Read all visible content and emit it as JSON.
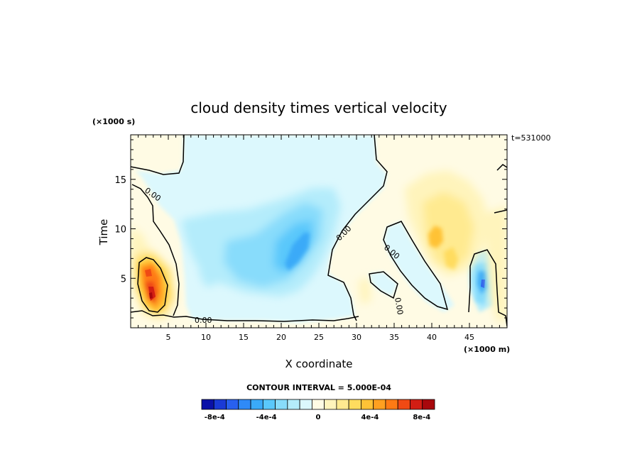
{
  "chart_data": {
    "type": "heatmap",
    "title": "cloud density times vertical velocity",
    "xlabel": "X coordinate",
    "ylabel": "Time",
    "x_units": "(×1000 m)",
    "y_units": "(×1000 s)",
    "time_stamp": "t=531000",
    "xlim": [
      0,
      50
    ],
    "ylim": [
      0,
      19.5
    ],
    "x_ticks": [
      5,
      10,
      15,
      20,
      25,
      30,
      35,
      40,
      45
    ],
    "y_ticks": [
      5,
      10,
      15
    ],
    "contour_interval_text": "CONTOUR INTERVAL = 5.000E-04",
    "contour_label": "0.00",
    "colorbar": {
      "min": -0.0009,
      "max": 0.0009,
      "step": 0.0001,
      "labels": [
        {
          "value": -0.0008,
          "text": "-8e-4"
        },
        {
          "value": -0.0004,
          "text": "-4e-4"
        },
        {
          "value": 0,
          "text": "0"
        },
        {
          "value": 0.0004,
          "text": "4e-4"
        },
        {
          "value": 0.0008,
          "text": "8e-4"
        }
      ],
      "colors": [
        "#0a10a8",
        "#1a3ad6",
        "#2860ef",
        "#2f8af7",
        "#3aaaf8",
        "#5ac8fb",
        "#88dcfb",
        "#b4ecfb",
        "#dcf8fd",
        "#fffbe4",
        "#fff4bc",
        "#ffea90",
        "#ffdc5e",
        "#ffc236",
        "#ffa020",
        "#ff7a14",
        "#f04a14",
        "#d21e14",
        "#a8080c"
      ]
    },
    "features": [
      {
        "x": 2.8,
        "y": 4.5,
        "value": 0.0008,
        "note": "positive maximum"
      },
      {
        "x": 22.5,
        "y": 8.0,
        "value": -0.0005,
        "note": "negative minimum"
      },
      {
        "x": 40.5,
        "y": 10.0,
        "value": 0.0004,
        "note": "positive core"
      },
      {
        "x": 46.0,
        "y": 5.0,
        "value": -0.0005,
        "note": "negative core"
      }
    ]
  }
}
